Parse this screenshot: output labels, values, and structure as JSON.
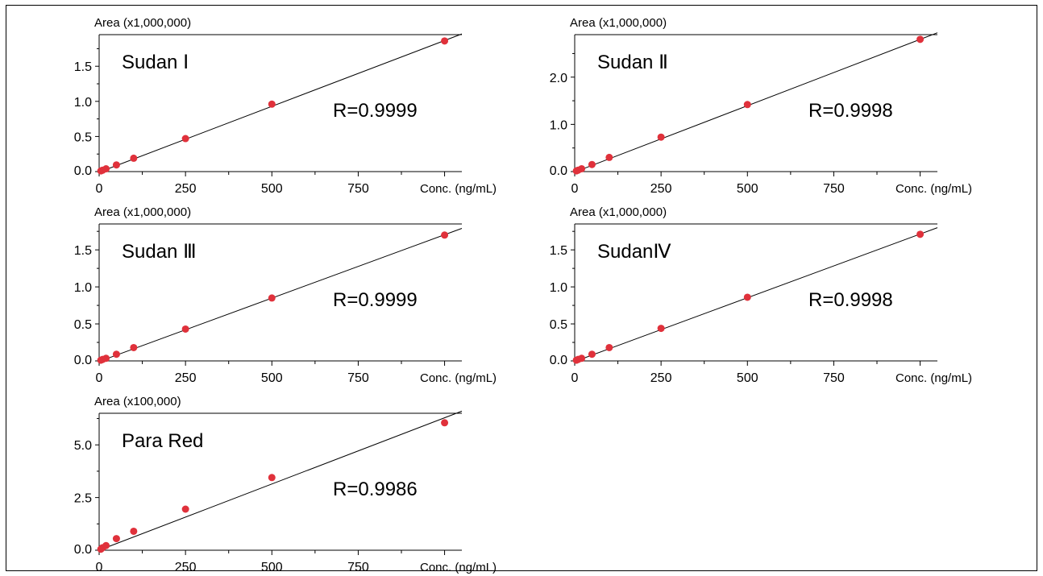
{
  "chart_data": [
    {
      "type": "scatter",
      "title": "Sudan Ⅰ",
      "annotation": "R=0.9999",
      "ylabel": "Area (x1,000,000)",
      "xlabel": "Conc. (ng/mL)",
      "xlim": [
        0,
        1050
      ],
      "ylim": [
        0,
        1.95
      ],
      "xticks": [
        0,
        250,
        500,
        750
      ],
      "xtick_labels": [
        "0",
        "250",
        "500",
        "750"
      ],
      "yticks": [
        0,
        0.5,
        1.0,
        1.5
      ],
      "ytick_labels": [
        "0.0",
        "0.5",
        "1.0",
        "1.5"
      ],
      "points": [
        {
          "x": 5,
          "y": 0.01
        },
        {
          "x": 10,
          "y": 0.02
        },
        {
          "x": 20,
          "y": 0.04
        },
        {
          "x": 50,
          "y": 0.095
        },
        {
          "x": 100,
          "y": 0.19
        },
        {
          "x": 250,
          "y": 0.47
        },
        {
          "x": 500,
          "y": 0.96
        },
        {
          "x": 1000,
          "y": 1.86
        }
      ],
      "fit": {
        "x1": 0,
        "y1": -0.008,
        "x2": 1050,
        "y2": 1.96
      },
      "point_color": "#e0313b"
    },
    {
      "type": "scatter",
      "title": "Sudan Ⅱ",
      "annotation": "R=0.9998",
      "ylabel": "Area (x1,000,000)",
      "xlabel": "Conc. (ng/mL)",
      "xlim": [
        0,
        1050
      ],
      "ylim": [
        0,
        2.9
      ],
      "xticks": [
        0,
        250,
        500,
        750
      ],
      "xtick_labels": [
        "0",
        "250",
        "500",
        "750"
      ],
      "yticks": [
        0,
        1.0,
        2.0
      ],
      "ytick_labels": [
        "0.0",
        "1.0",
        "2.0"
      ],
      "points": [
        {
          "x": 5,
          "y": 0.015
        },
        {
          "x": 10,
          "y": 0.03
        },
        {
          "x": 20,
          "y": 0.06
        },
        {
          "x": 50,
          "y": 0.15
        },
        {
          "x": 100,
          "y": 0.3
        },
        {
          "x": 250,
          "y": 0.73
        },
        {
          "x": 500,
          "y": 1.42
        },
        {
          "x": 1000,
          "y": 2.8
        }
      ],
      "fit": {
        "x1": 0,
        "y1": -0.01,
        "x2": 1050,
        "y2": 2.94
      },
      "point_color": "#e0313b"
    },
    {
      "type": "scatter",
      "title": "Sudan Ⅲ",
      "annotation": "R=0.9999",
      "ylabel": "Area (x1,000,000)",
      "xlabel": "Conc. (ng/mL)",
      "xlim": [
        0,
        1050
      ],
      "ylim": [
        0,
        1.85
      ],
      "xticks": [
        0,
        250,
        500,
        750
      ],
      "xtick_labels": [
        "0",
        "250",
        "500",
        "750"
      ],
      "yticks": [
        0,
        0.5,
        1.0,
        1.5
      ],
      "ytick_labels": [
        "0.0",
        "0.5",
        "1.0",
        "1.5"
      ],
      "points": [
        {
          "x": 5,
          "y": 0.01
        },
        {
          "x": 10,
          "y": 0.02
        },
        {
          "x": 20,
          "y": 0.035
        },
        {
          "x": 50,
          "y": 0.09
        },
        {
          "x": 100,
          "y": 0.18
        },
        {
          "x": 250,
          "y": 0.43
        },
        {
          "x": 500,
          "y": 0.85
        },
        {
          "x": 1000,
          "y": 1.7
        }
      ],
      "fit": {
        "x1": 0,
        "y1": -0.008,
        "x2": 1050,
        "y2": 1.79
      },
      "point_color": "#e0313b"
    },
    {
      "type": "scatter",
      "title": "SudanⅣ",
      "annotation": "R=0.9998",
      "ylabel": "Area (x1,000,000)",
      "xlabel": "Conc.  (ng/mL)",
      "xlim": [
        0,
        1050
      ],
      "ylim": [
        0,
        1.85
      ],
      "xticks": [
        0,
        250,
        500,
        750
      ],
      "xtick_labels": [
        "0",
        "250",
        "500",
        "750"
      ],
      "yticks": [
        0,
        0.5,
        1.0,
        1.5
      ],
      "ytick_labels": [
        "0.0",
        "0.5",
        "1.0",
        "1.5"
      ],
      "points": [
        {
          "x": 5,
          "y": 0.01
        },
        {
          "x": 10,
          "y": 0.02
        },
        {
          "x": 20,
          "y": 0.035
        },
        {
          "x": 50,
          "y": 0.09
        },
        {
          "x": 100,
          "y": 0.18
        },
        {
          "x": 250,
          "y": 0.44
        },
        {
          "x": 500,
          "y": 0.86
        },
        {
          "x": 1000,
          "y": 1.71
        }
      ],
      "fit": {
        "x1": 0,
        "y1": -0.008,
        "x2": 1050,
        "y2": 1.8
      },
      "point_color": "#e0313b"
    },
    {
      "type": "scatter",
      "title": "Para Red",
      "annotation": "R=0.9986",
      "ylabel": "Area (x100,000)",
      "xlabel": "Conc. (ng/mL)",
      "xlim": [
        0,
        1050
      ],
      "ylim": [
        0,
        6.5
      ],
      "xticks": [
        0,
        250,
        500,
        750
      ],
      "xtick_labels": [
        "0",
        "250",
        "500",
        "750"
      ],
      "yticks": [
        0,
        2.5,
        5.0
      ],
      "ytick_labels": [
        "0.0",
        "2.5",
        "5.0"
      ],
      "points": [
        {
          "x": 5,
          "y": 0.05
        },
        {
          "x": 10,
          "y": 0.12
        },
        {
          "x": 20,
          "y": 0.22
        },
        {
          "x": 50,
          "y": 0.55
        },
        {
          "x": 100,
          "y": 0.9
        },
        {
          "x": 250,
          "y": 1.95
        },
        {
          "x": 500,
          "y": 3.45
        },
        {
          "x": 1000,
          "y": 6.05
        }
      ],
      "fit": {
        "x1": 0,
        "y1": 0.0,
        "x2": 1050,
        "y2": 6.6
      },
      "point_color": "#e0313b"
    }
  ]
}
